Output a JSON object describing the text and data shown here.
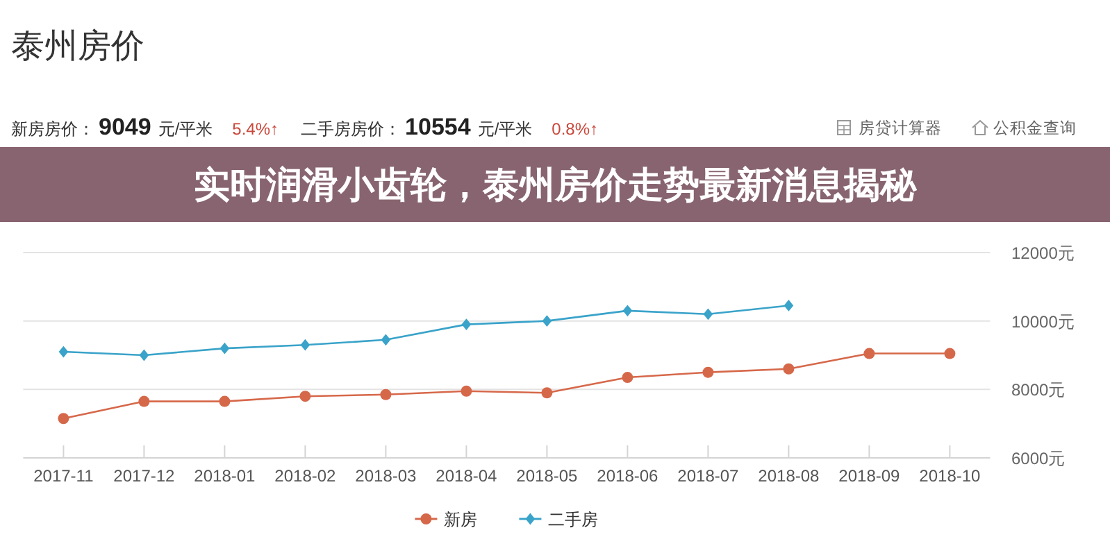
{
  "chart_data": {
    "type": "line",
    "title": "泰州房价",
    "subtitle": "实时润滑小齿轮，泰州房价走势最新消息揭秘",
    "annotations": [
      "新房房价：",
      "9049",
      "元/平米",
      "5.4%↑",
      "二手房房价：",
      "10554",
      "元/平米",
      "0.8%↑",
      "房贷计算器",
      "公积金查询"
    ],
    "categories": [
      "2017-11",
      "2017-12",
      "2018-01",
      "2018-02",
      "2018-03",
      "2018-04",
      "2018-05",
      "2018-06",
      "2018-07",
      "2018-08",
      "2018-09",
      "2018-10"
    ],
    "series": [
      {
        "name": "新房",
        "color": "#d6684a",
        "marker": "circle",
        "values": [
          7150,
          7650,
          7650,
          7800,
          7850,
          7950,
          7900,
          8350,
          8500,
          8600,
          9050,
          9050
        ]
      },
      {
        "name": "二手房",
        "color": "#3aa3c9",
        "marker": "diamond",
        "values": [
          9100,
          9000,
          9200,
          9300,
          9450,
          9900,
          10000,
          10300,
          10200,
          10450,
          null,
          null
        ]
      }
    ],
    "ylim": [
      6000,
      12000
    ],
    "yticks": [
      {
        "value": 6000,
        "label": "6000元"
      },
      {
        "value": 8000,
        "label": "8000元"
      },
      {
        "value": 10000,
        "label": "10000元"
      },
      {
        "value": 12000,
        "label": "12000元"
      }
    ],
    "grid": "y",
    "legend": "bottom"
  }
}
